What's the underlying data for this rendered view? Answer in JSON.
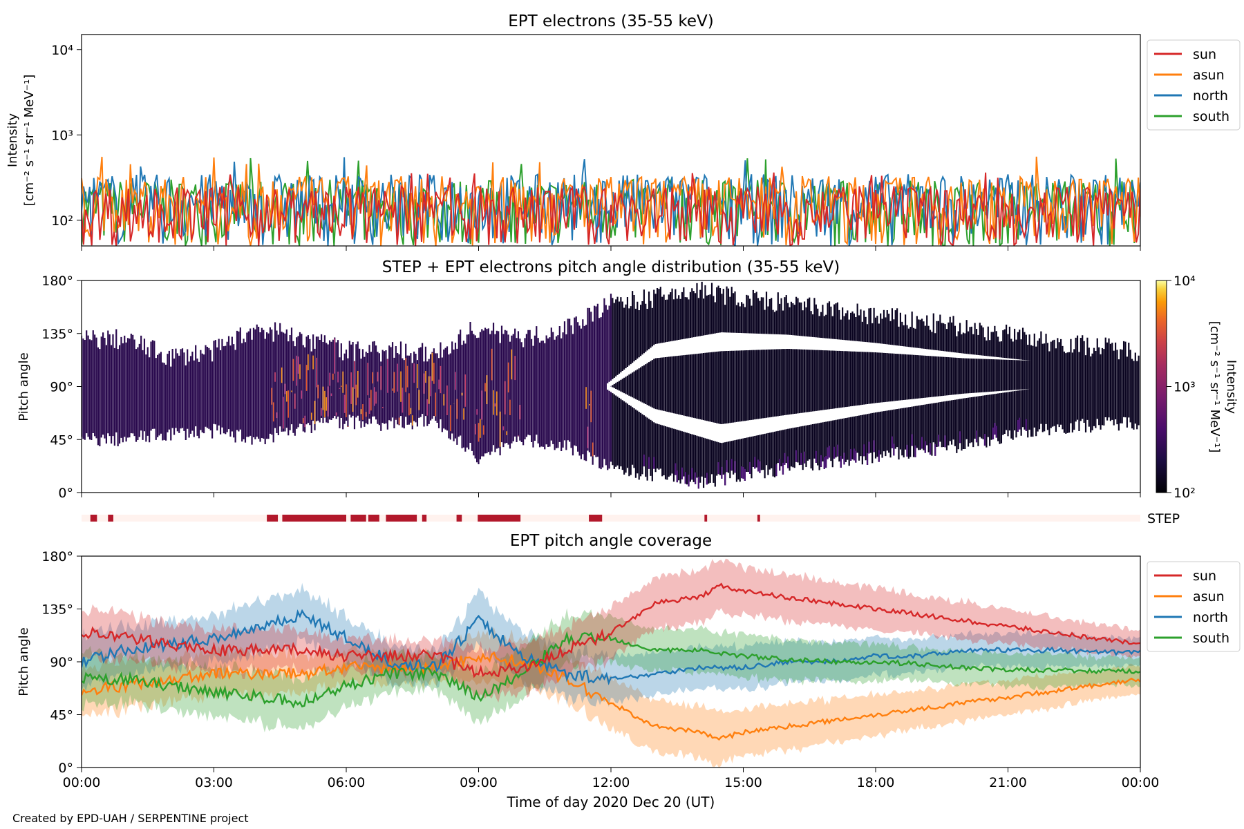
{
  "figure": {
    "credit": "Created by EPD-UAH / SERPENTINE project",
    "x_label": "Time of day 2020 Dec 20 (UT)",
    "x_ticks": [
      "00:00",
      "03:00",
      "06:00",
      "09:00",
      "12:00",
      "15:00",
      "18:00",
      "21:00",
      "00:00"
    ]
  },
  "colors": {
    "sun": "#d62728",
    "asun": "#ff7f0e",
    "north": "#1f77b4",
    "south": "#2ca02c",
    "step": "#b2182b",
    "step_bg": "#fff2ee"
  },
  "chart_data": [
    {
      "type": "line",
      "title": "EPT electrons (35-55 keV)",
      "ylabel_line1": "Intensity",
      "ylabel_line2": "[cm⁻² s⁻¹ sr⁻¹ MeV⁻¹]",
      "yscale": "log",
      "ylim": [
        50,
        15000
      ],
      "yticks": [
        {
          "value": 100,
          "label": "10²"
        },
        {
          "value": 1000,
          "label": "10³"
        },
        {
          "value": 10000,
          "label": "10⁴"
        }
      ],
      "xlim_hours": [
        0,
        24
      ],
      "legend_position": "outside-right-top",
      "series": [
        {
          "name": "sun",
          "band": [
            50,
            250
          ],
          "peak": 400
        },
        {
          "name": "asun",
          "band": [
            50,
            330
          ],
          "peak": 600
        },
        {
          "name": "north",
          "band": [
            50,
            350
          ],
          "peak": 550
        },
        {
          "name": "south",
          "band": [
            50,
            300
          ],
          "peak": 600
        }
      ]
    },
    {
      "type": "heatmap",
      "title": "STEP + EPT electrons pitch angle distribution (35-55 keV)",
      "ylabel": "Pitch angle",
      "ylim": [
        0,
        180
      ],
      "yticks": [
        0,
        45,
        90,
        135,
        180
      ],
      "ytick_labels": [
        "0°",
        "45°",
        "90°",
        "135°",
        "180°"
      ],
      "colorbar": {
        "label_line1": "Intensity",
        "label_line2": "[cm⁻² s⁻¹ sr⁻¹ MeV⁻¹]",
        "scale": "log",
        "range": [
          100,
          10000
        ],
        "ticks": [
          "10²",
          "10³",
          "10⁴"
        ],
        "colormap": "inferno"
      },
      "coverage_profile": [
        {
          "t": 0,
          "low": 45,
          "high": 130
        },
        {
          "t": 1,
          "low": 45,
          "high": 130
        },
        {
          "t": 2,
          "low": 50,
          "high": 115
        },
        {
          "t": 3,
          "low": 52,
          "high": 120
        },
        {
          "t": 4,
          "low": 45,
          "high": 140
        },
        {
          "t": 5,
          "low": 55,
          "high": 130
        },
        {
          "t": 6,
          "low": 60,
          "high": 120
        },
        {
          "t": 7,
          "low": 58,
          "high": 120
        },
        {
          "t": 8,
          "low": 62,
          "high": 118
        },
        {
          "t": 9,
          "low": 30,
          "high": 140
        },
        {
          "t": 10,
          "low": 45,
          "high": 130
        },
        {
          "t": 11,
          "low": 40,
          "high": 140
        },
        {
          "t": 12,
          "low": 20,
          "high": 160
        },
        {
          "t": 13,
          "low": 15,
          "high": 165
        },
        {
          "t": 14,
          "low": 8,
          "high": 172
        },
        {
          "t": 15,
          "low": 15,
          "high": 165
        },
        {
          "t": 16,
          "low": 20,
          "high": 160
        },
        {
          "t": 18,
          "low": 30,
          "high": 150
        },
        {
          "t": 20,
          "low": 40,
          "high": 140
        },
        {
          "t": 22,
          "low": 55,
          "high": 128
        },
        {
          "t": 24,
          "low": 60,
          "high": 120
        }
      ],
      "gaps": [
        {
          "t_start": 11.9,
          "t_end": 24,
          "profile": [
            {
              "t": 11.9,
              "c1": 90,
              "c2": 90,
              "w": 2
            },
            {
              "t": 13,
              "c1": 120,
              "c2": 65,
              "w": 6
            },
            {
              "t": 14.5,
              "c1": 128,
              "c2": 50,
              "w": 8
            },
            {
              "t": 16,
              "c1": 128,
              "c2": 60,
              "w": 6
            },
            {
              "t": 18,
              "c1": 123,
              "c2": 72,
              "w": 4
            },
            {
              "t": 20,
              "c1": 116,
              "c2": 82,
              "w": 2
            },
            {
              "t": 21.5,
              "c1": 112,
              "c2": 88,
              "w": 0
            }
          ]
        }
      ],
      "high_intensity_intervals": [
        [
          4.3,
          8.7
        ],
        [
          8.9,
          10.0
        ],
        [
          11.4,
          11.6
        ]
      ]
    },
    {
      "type": "bar",
      "title": "",
      "label": "STEP",
      "intervals": [
        [
          0.2,
          0.35
        ],
        [
          0.6,
          0.72
        ],
        [
          4.2,
          4.45
        ],
        [
          4.55,
          6.0
        ],
        [
          6.1,
          6.45
        ],
        [
          6.5,
          6.75
        ],
        [
          6.9,
          7.6
        ],
        [
          7.72,
          7.82
        ],
        [
          8.5,
          8.62
        ],
        [
          8.98,
          9.95
        ],
        [
          11.5,
          11.8
        ],
        [
          14.12,
          14.18
        ],
        [
          15.32,
          15.38
        ]
      ]
    },
    {
      "type": "line",
      "title": "EPT pitch angle coverage",
      "ylabel": "Pitch angle",
      "ylim": [
        0,
        180
      ],
      "yticks": [
        0,
        45,
        90,
        135,
        180
      ],
      "ytick_labels": [
        "0°",
        "45°",
        "90°",
        "135°",
        "180°"
      ],
      "legend_position": "outside-right-top",
      "series": [
        {
          "name": "sun",
          "x": [
            0,
            1,
            2,
            3,
            4,
            5,
            6,
            7,
            8,
            9,
            10,
            11,
            12,
            13,
            14,
            14.5,
            15,
            16,
            17,
            18,
            19,
            20,
            21,
            22,
            23,
            24
          ],
          "y": [
            115,
            110,
            105,
            100,
            100,
            100,
            95,
            95,
            95,
            80,
            85,
            100,
            115,
            140,
            145,
            155,
            150,
            145,
            140,
            135,
            130,
            125,
            120,
            115,
            110,
            105
          ],
          "halfwidth": [
            20,
            20,
            18,
            18,
            18,
            16,
            14,
            14,
            12,
            20,
            20,
            20,
            22,
            22,
            22,
            22,
            20,
            20,
            18,
            18,
            16,
            16,
            14,
            14,
            12,
            12
          ]
        },
        {
          "name": "asun",
          "x": [
            0,
            1,
            2,
            3,
            4,
            5,
            6,
            7,
            8,
            9,
            10,
            11,
            12,
            13,
            14,
            14.5,
            15,
            16,
            17,
            18,
            19,
            20,
            21,
            22,
            23,
            24
          ],
          "y": [
            65,
            70,
            75,
            80,
            80,
            80,
            85,
            85,
            85,
            95,
            90,
            75,
            55,
            35,
            30,
            25,
            30,
            35,
            40,
            45,
            50,
            55,
            60,
            65,
            70,
            75
          ],
          "halfwidth": [
            20,
            20,
            18,
            18,
            18,
            16,
            14,
            14,
            12,
            20,
            20,
            20,
            22,
            22,
            22,
            22,
            20,
            20,
            18,
            18,
            16,
            16,
            14,
            14,
            12,
            12
          ]
        },
        {
          "name": "north",
          "x": [
            0,
            1,
            2,
            3,
            4,
            5,
            6,
            7,
            8,
            9,
            10,
            11,
            12,
            13,
            14,
            15,
            16,
            17,
            18,
            19,
            20,
            21,
            22,
            23,
            24
          ],
          "y": [
            90,
            100,
            105,
            110,
            120,
            130,
            110,
            90,
            85,
            125,
            95,
            80,
            75,
            80,
            85,
            85,
            90,
            90,
            95,
            95,
            100,
            100,
            100,
            98,
            98
          ],
          "halfwidth": [
            22,
            20,
            20,
            20,
            22,
            22,
            18,
            16,
            14,
            22,
            22,
            20,
            20,
            18,
            18,
            18,
            18,
            16,
            16,
            14,
            14,
            14,
            14,
            12,
            12
          ]
        },
        {
          "name": "south",
          "x": [
            0,
            1,
            2,
            3,
            4,
            5,
            6,
            7,
            8,
            9,
            10,
            11,
            12,
            13,
            14,
            15,
            16,
            17,
            18,
            19,
            20,
            21,
            22,
            23,
            24
          ],
          "y": [
            75,
            75,
            70,
            65,
            60,
            55,
            70,
            80,
            80,
            60,
            80,
            110,
            110,
            100,
            100,
            95,
            92,
            90,
            90,
            88,
            85,
            83,
            83,
            82,
            82
          ],
          "halfwidth": [
            22,
            20,
            20,
            20,
            22,
            22,
            18,
            16,
            14,
            22,
            22,
            20,
            20,
            18,
            18,
            18,
            18,
            16,
            16,
            14,
            14,
            14,
            14,
            12,
            12
          ]
        }
      ]
    }
  ]
}
